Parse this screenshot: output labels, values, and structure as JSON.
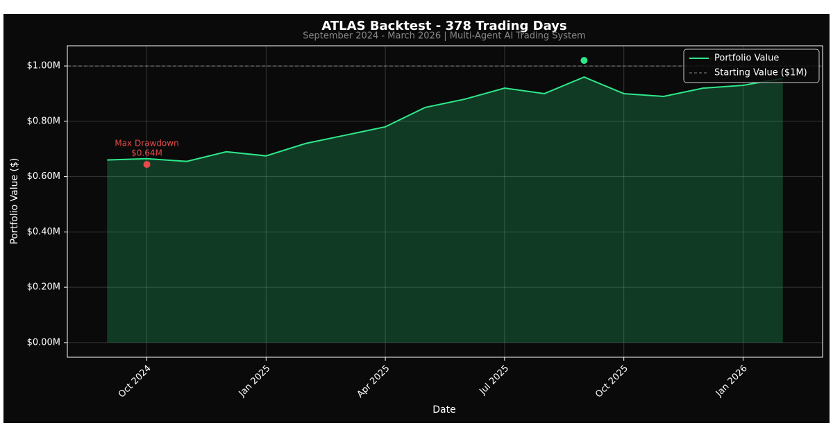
{
  "chart_data": {
    "type": "line",
    "title": "ATLAS Backtest - 378 Trading Days",
    "subtitle": "September 2024 - March 2026 | Multi-Agent AI Trading System",
    "x_label": "Date",
    "y_label": "Portfolio Value ($)",
    "x": [
      "2024-09",
      "2024-10",
      "2024-11",
      "2024-12",
      "2025-01",
      "2025-02",
      "2025-03",
      "2025-04",
      "2025-05",
      "2025-06",
      "2025-07",
      "2025-08",
      "2025-09",
      "2025-10",
      "2025-11",
      "2025-12",
      "2026-01",
      "2026-02"
    ],
    "series": [
      {
        "name": "Portfolio Value",
        "color": "#2ee88a",
        "values": [
          660000,
          665000,
          655000,
          690000,
          675000,
          720000,
          750000,
          780000,
          850000,
          880000,
          920000,
          900000,
          960000,
          900000,
          890000,
          920000,
          930000,
          955000
        ]
      }
    ],
    "reference": {
      "name": "Starting Value ($1M)",
      "value": 1000000,
      "color": "#888888"
    },
    "peak": {
      "x": "2025-09",
      "value": 1020000,
      "color": "#2ee88a"
    },
    "max_drawdown": {
      "x": "2024-10",
      "value": 644000,
      "title": "Max Drawdown",
      "value_label": "$0.64M",
      "color": "#e84a4a"
    },
    "xlim": [
      "2024-08",
      "2026-03"
    ],
    "xticks": [
      {
        "value": "2024-10",
        "label": "Oct 2024"
      },
      {
        "value": "2025-01",
        "label": "Jan 2025"
      },
      {
        "value": "2025-04",
        "label": "Apr 2025"
      },
      {
        "value": "2025-07",
        "label": "Jul 2025"
      },
      {
        "value": "2025-10",
        "label": "Oct 2025"
      },
      {
        "value": "2026-01",
        "label": "Jan 2026"
      }
    ],
    "ylim": [
      -53000,
      1073000
    ],
    "yticks": [
      {
        "value": 0,
        "label": "$0.00M"
      },
      {
        "value": 200000,
        "label": "$0.20M"
      },
      {
        "value": 400000,
        "label": "$0.40M"
      },
      {
        "value": 600000,
        "label": "$0.60M"
      },
      {
        "value": 800000,
        "label": "$0.80M"
      },
      {
        "value": 1000000,
        "label": "$1.00M"
      }
    ],
    "grid": true,
    "legend": "upper right"
  }
}
